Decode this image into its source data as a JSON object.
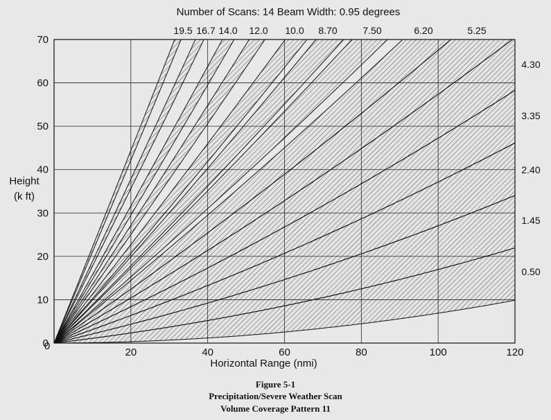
{
  "chart_data": {
    "type": "line",
    "header": "Number of Scans: 14    Beam Width: 0.95 degrees",
    "xlabel": "Horizontal Range (nmi)",
    "ylabel_lines": [
      "Height",
      "(k ft)"
    ],
    "xlim": [
      0,
      120
    ],
    "ylim": [
      0,
      70
    ],
    "xticks": [
      20,
      40,
      60,
      80,
      100,
      120
    ],
    "yticks": [
      0,
      10,
      20,
      30,
      40,
      50,
      60,
      70
    ],
    "grid": true,
    "top_labels": [
      "19.5",
      "16.7",
      "14.0",
      "12.0",
      "10.0",
      "8.70",
      "7.50",
      "6.20",
      "5.25"
    ],
    "right_labels": [
      "4.30",
      "3.35",
      "2.40",
      "1.45",
      "0.50"
    ],
    "elevations_deg": [
      0.5,
      1.45,
      2.4,
      3.35,
      4.3,
      5.25,
      6.2,
      7.5,
      8.7,
      10.0,
      12.0,
      14.0,
      16.7,
      19.5
    ],
    "beam_width_deg": 0.95
  },
  "figure": {
    "number": "Figure 5-1",
    "line1": "Precipitation/Severe Weather Scan",
    "line2": "Volume Coverage Pattern 11"
  }
}
